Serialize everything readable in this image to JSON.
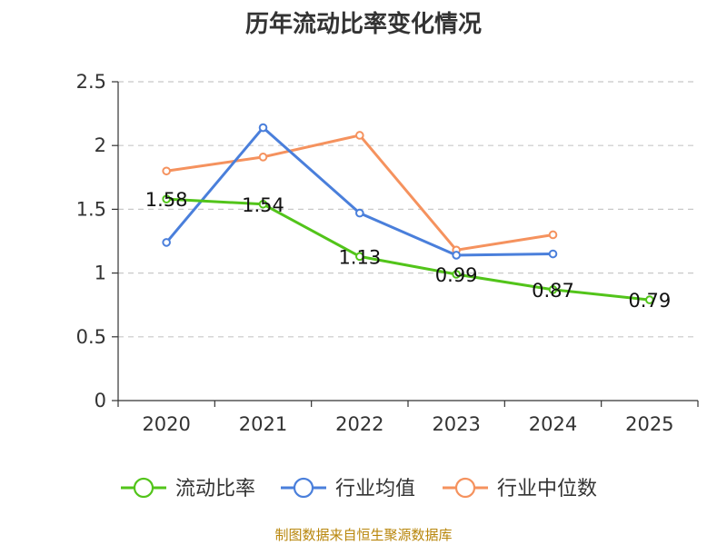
{
  "chart_data": {
    "type": "line",
    "title": "历年流动比率变化情况",
    "categories": [
      "2020",
      "2021",
      "2022",
      "2023",
      "2024",
      "2025"
    ],
    "ylim": [
      0,
      2.5
    ],
    "yticks": [
      "0",
      "0.5",
      "1",
      "1.5",
      "2",
      "2.5"
    ],
    "grid": true,
    "legend_position": "bottom",
    "series": [
      {
        "name": "流动比率",
        "color": "#52c41a",
        "values": [
          1.58,
          1.54,
          1.13,
          0.99,
          0.87,
          0.79
        ],
        "labels": [
          "1.58",
          "1.54",
          "1.13",
          "0.99",
          "0.87",
          "0.79"
        ],
        "show_labels": true
      },
      {
        "name": "行业均值",
        "color": "#4a7fdb",
        "values": [
          1.24,
          2.14,
          1.47,
          1.14,
          1.15,
          null
        ],
        "show_labels": false
      },
      {
        "name": "行业中位数",
        "color": "#f5925e",
        "values": [
          1.8,
          1.91,
          2.08,
          1.18,
          1.3,
          null
        ],
        "show_labels": false
      }
    ]
  },
  "footer": {
    "source": "制图数据来自恒生聚源数据库"
  }
}
